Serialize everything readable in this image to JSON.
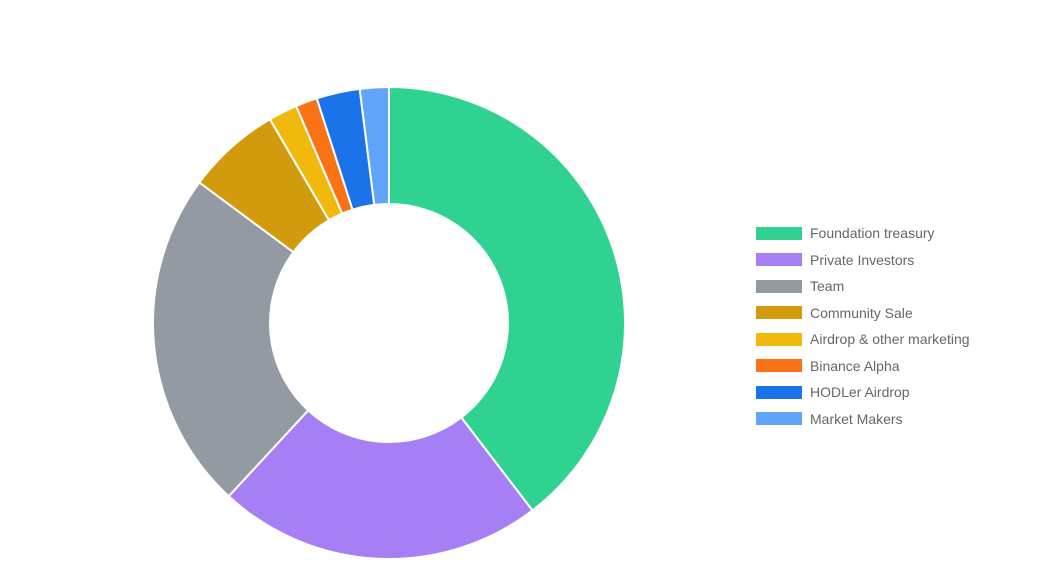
{
  "chart_data": {
    "type": "pie",
    "variant": "doughnut",
    "legend_position": "right",
    "categories": [
      "Foundation treasury",
      "Private Investors",
      "Team",
      "Community Sale",
      "Airdrop & other marketing",
      "Binance Alpha",
      "HODLer Airdrop",
      "Market Makers"
    ],
    "values": [
      40,
      22.5,
      23.5,
      6.5,
      2,
      1.5,
      3,
      2
    ],
    "colors": [
      "#2fd291",
      "#a77ff5",
      "#939aa2",
      "#d29b0d",
      "#f0b90b",
      "#f97316",
      "#1a73e8",
      "#60a5fa"
    ]
  }
}
